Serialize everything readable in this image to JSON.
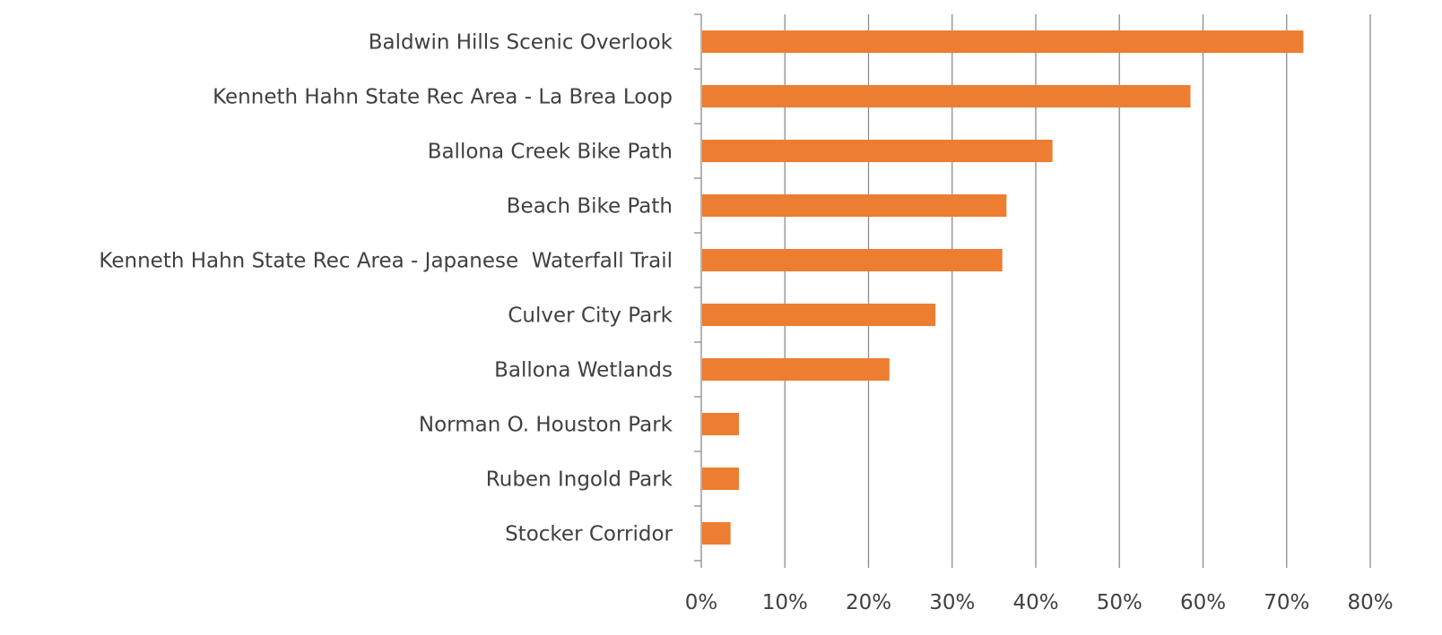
{
  "chart_data": {
    "type": "bar",
    "orientation": "horizontal",
    "categories": [
      "Baldwin Hills Scenic Overlook",
      "Kenneth Hahn State Rec Area - La Brea Loop",
      "Ballona Creek Bike Path",
      "Beach Bike Path",
      "Kenneth Hahn State Rec Area - Japanese  Waterfall Trail",
      "Culver City Park",
      "Ballona Wetlands",
      "Norman O. Houston Park",
      "Ruben Ingold Park",
      "Stocker Corridor"
    ],
    "values": [
      72,
      58.5,
      42,
      36.5,
      36,
      28,
      22.5,
      4.5,
      4.5,
      3.5
    ],
    "xlim": [
      0,
      80
    ],
    "x_ticks": [
      0,
      10,
      20,
      30,
      40,
      50,
      60,
      70,
      80
    ],
    "x_tick_labels": [
      "0%",
      "10%",
      "20%",
      "30%",
      "40%",
      "50%",
      "60%",
      "70%",
      "80%"
    ],
    "value_unit": "percent",
    "grid": "vertical major gridlines",
    "legend": "none",
    "colors": {
      "bar": "#ed7d31",
      "grid": "#8c8c8c",
      "text": "#404040"
    }
  }
}
